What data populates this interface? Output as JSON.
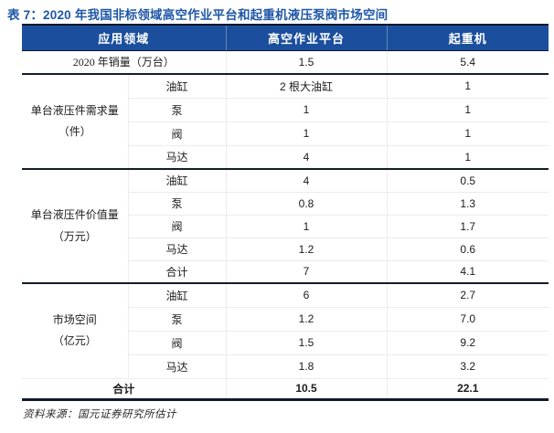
{
  "page_title": "表 7：2020 年我国非标领域高空作业平台和起重机液压泵阀市场空间",
  "source_note": "资料来源：国元证券研究所估计",
  "colors": {
    "header_bg": "#1B4F9D",
    "title_text": "#1E56A8",
    "rule_dark": "#10182A",
    "grid_light": "#ECECEC"
  },
  "table": {
    "header": {
      "col_app": "应用领域",
      "col_platform": "高空作业平台",
      "col_crane": "起重机"
    },
    "sales": {
      "label": "2020 年销量（万台）",
      "platform": "1.5",
      "crane": "5.4"
    },
    "groups": [
      {
        "label_line1": "单台液压件需求量",
        "label_line2": "（件）",
        "rows": [
          {
            "item": "油缸",
            "platform": "2 根大油缸",
            "crane": "1"
          },
          {
            "item": "泵",
            "platform": "1",
            "crane": "1"
          },
          {
            "item": "阀",
            "platform": "1",
            "crane": "1"
          },
          {
            "item": "马达",
            "platform": "4",
            "crane": "1"
          }
        ]
      },
      {
        "label_line1": "单台液压件价值量",
        "label_line2": "（万元）",
        "rows": [
          {
            "item": "油缸",
            "platform": "4",
            "crane": "0.5"
          },
          {
            "item": "泵",
            "platform": "0.8",
            "crane": "1.3"
          },
          {
            "item": "阀",
            "platform": "1",
            "crane": "1.7"
          },
          {
            "item": "马达",
            "platform": "1.2",
            "crane": "0.6"
          },
          {
            "item": "合计",
            "platform": "7",
            "crane": "4.1"
          }
        ]
      },
      {
        "label_line1": "市场空间",
        "label_line2": "（亿元）",
        "rows": [
          {
            "item": "油缸",
            "platform": "6",
            "crane": "2.7"
          },
          {
            "item": "泵",
            "platform": "1.2",
            "crane": "7.0"
          },
          {
            "item": "阀",
            "platform": "1.5",
            "crane": "9.2"
          },
          {
            "item": "马达",
            "platform": "1.8",
            "crane": "3.2"
          }
        ]
      }
    ],
    "total": {
      "label": "合计",
      "platform": "10.5",
      "crane": "22.1"
    }
  }
}
